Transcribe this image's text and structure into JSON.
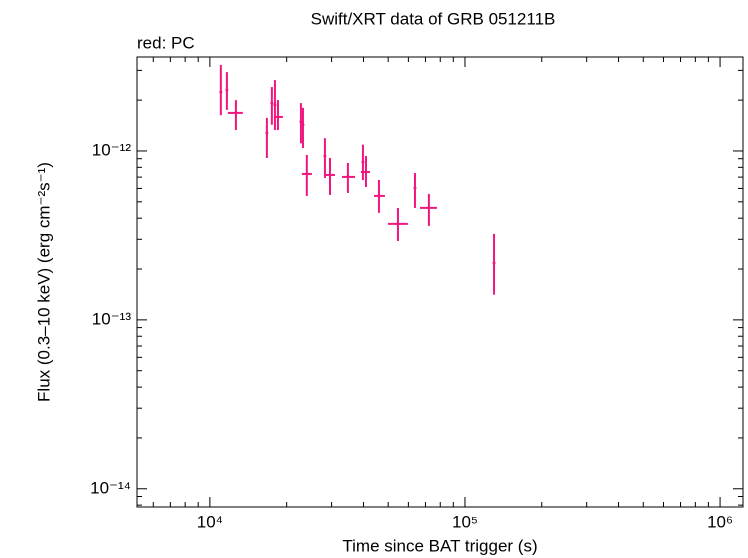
{
  "chart_data": {
    "type": "scatter",
    "title": "Swift/XRT data of GRB 051211B",
    "subtitle": "red: PC",
    "x_label": "Time since BAT trigger (s)",
    "y_label": "Flux (0.3–10 keV) (erg cm⁻²s⁻¹)",
    "xscale": "log",
    "yscale": "log",
    "xlim": [
      5180,
      1230000
    ],
    "ylim": [
      7.8e-15,
      3.6e-12
    ],
    "xticks": [
      {
        "value": 10000,
        "label": "10⁴"
      },
      {
        "value": 100000,
        "label": "10⁵"
      },
      {
        "value": 1000000,
        "label": "10⁶"
      }
    ],
    "yticks": [
      {
        "value": 1e-14,
        "label": "10⁻¹⁴"
      },
      {
        "value": 1e-13,
        "label": "10⁻¹³"
      },
      {
        "value": 1e-12,
        "label": "10⁻¹²"
      }
    ],
    "xticks_minor": [
      6000,
      7000,
      8000,
      9000,
      20000,
      30000,
      40000,
      50000,
      60000,
      70000,
      80000,
      90000,
      200000,
      300000,
      400000,
      500000,
      600000,
      700000,
      800000,
      900000
    ],
    "yticks_minor": [
      8e-15,
      9e-15,
      2e-14,
      3e-14,
      4e-14,
      5e-14,
      6e-14,
      7e-14,
      8e-14,
      9e-14,
      2e-13,
      3e-13,
      4e-13,
      5e-13,
      6e-13,
      7e-13,
      8e-13,
      9e-13,
      2e-12,
      3e-12
    ],
    "series": [
      {
        "name": "PC",
        "color": "#f0157f",
        "x": [
          11040,
          11660,
          12650,
          16730,
          17500,
          17990,
          18490,
          22750,
          23170,
          23990,
          28250,
          29570,
          34760,
          39810,
          40920,
          46000,
          54610,
          63680,
          72210,
          130000
        ],
        "x_lo": [
          null,
          null,
          11760,
          null,
          null,
          null,
          17820,
          null,
          null,
          22960,
          null,
          28250,
          32940,
          null,
          39080,
          43960,
          49890,
          null,
          66640,
          null
        ],
        "x_hi": [
          null,
          null,
          13470,
          null,
          null,
          null,
          19330,
          null,
          null,
          25120,
          null,
          30920,
          37050,
          null,
          42410,
          48560,
          59720,
          null,
          77670,
          null
        ],
        "values": [
          2.23e-12,
          2.3e-12,
          1.68e-12,
          1.28e-12,
          1.92e-12,
          1.87e-12,
          1.59e-12,
          1.49e-12,
          1.43e-12,
          7.31e-13,
          9.33e-13,
          7.21e-13,
          7.02e-13,
          8.61e-13,
          7.51e-13,
          5.42e-13,
          3.7e-13,
          6.04e-13,
          4.6e-13,
          2.17e-13
        ],
        "y_lo": [
          1.63e-12,
          1.75e-12,
          1.33e-12,
          9.09e-13,
          1.43e-12,
          1.33e-12,
          1.33e-12,
          1.11e-12,
          1.04e-12,
          5.42e-13,
          6.92e-13,
          5.49e-13,
          5.64e-13,
          6.73e-13,
          6.12e-13,
          4.3e-13,
          2.93e-13,
          4.6e-13,
          3.6e-13,
          1.41e-13
        ],
        "y_hi": [
          3.23e-12,
          2.93e-12,
          2e-12,
          1.57e-12,
          2.39e-12,
          2.63e-12,
          2e-12,
          1.92e-12,
          1.8e-12,
          9.47e-13,
          1.19e-12,
          9.09e-13,
          8.49e-13,
          1.09e-12,
          9.33e-13,
          6.73e-13,
          4.6e-13,
          7.41e-13,
          5.57e-13,
          3.23e-13
        ]
      }
    ]
  }
}
